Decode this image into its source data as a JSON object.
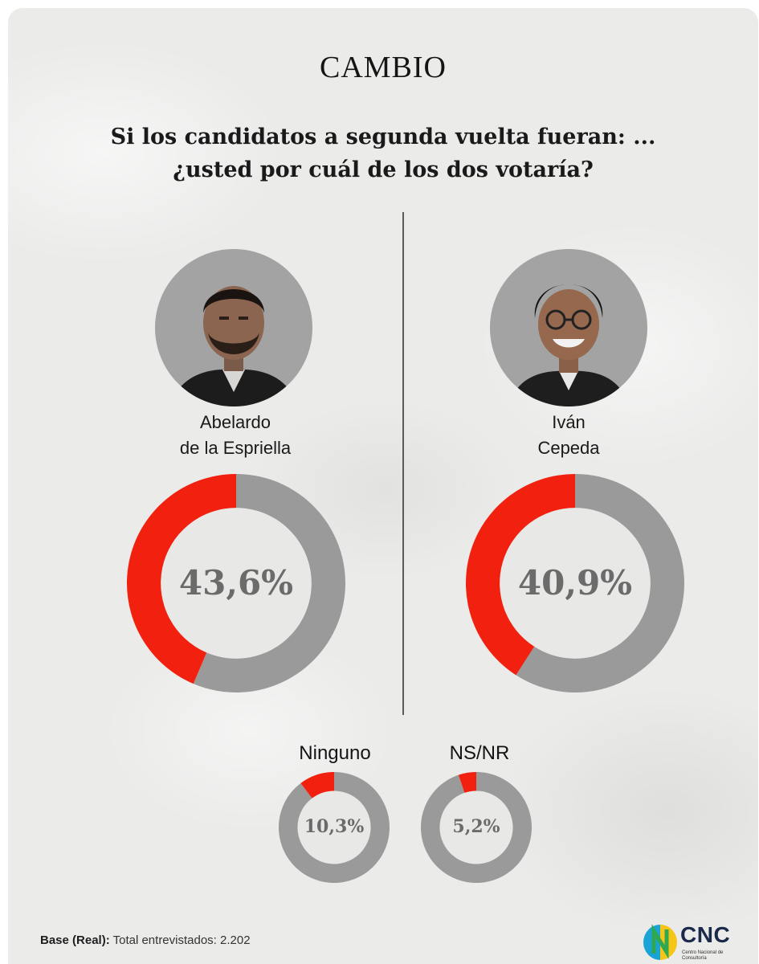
{
  "brand": "CAMBIO",
  "question": {
    "line1": "Si los candidatos a segunda vuelta fueran: ...",
    "line2": "¿usted por cuál de los dos votaría?"
  },
  "colors": {
    "accent": "#f2200e",
    "remainder": "#9a9a9a",
    "inner": "#e8e8e7"
  },
  "chart_data": {
    "type": "pie",
    "items": [
      {
        "label_line1": "Abelardo",
        "label_line2": "de la Espriella",
        "value": 43.6,
        "display": "43,6%"
      },
      {
        "label_line1": "Iván",
        "label_line2": "Cepeda",
        "value": 40.9,
        "display": "40,9%"
      },
      {
        "label_line1": "Ninguno",
        "label_line2": "",
        "value": 10.3,
        "display": "10,3%"
      },
      {
        "label_line1": "NS/NR",
        "label_line2": "",
        "value": 5.2,
        "display": "5,2%"
      }
    ]
  },
  "footer": {
    "base_label": "Base (Real):",
    "base_text": "Total entrevistados: 2.202"
  },
  "source_logo": {
    "text": "CNC",
    "subtext": "Centro Nacional de Consultoría"
  }
}
